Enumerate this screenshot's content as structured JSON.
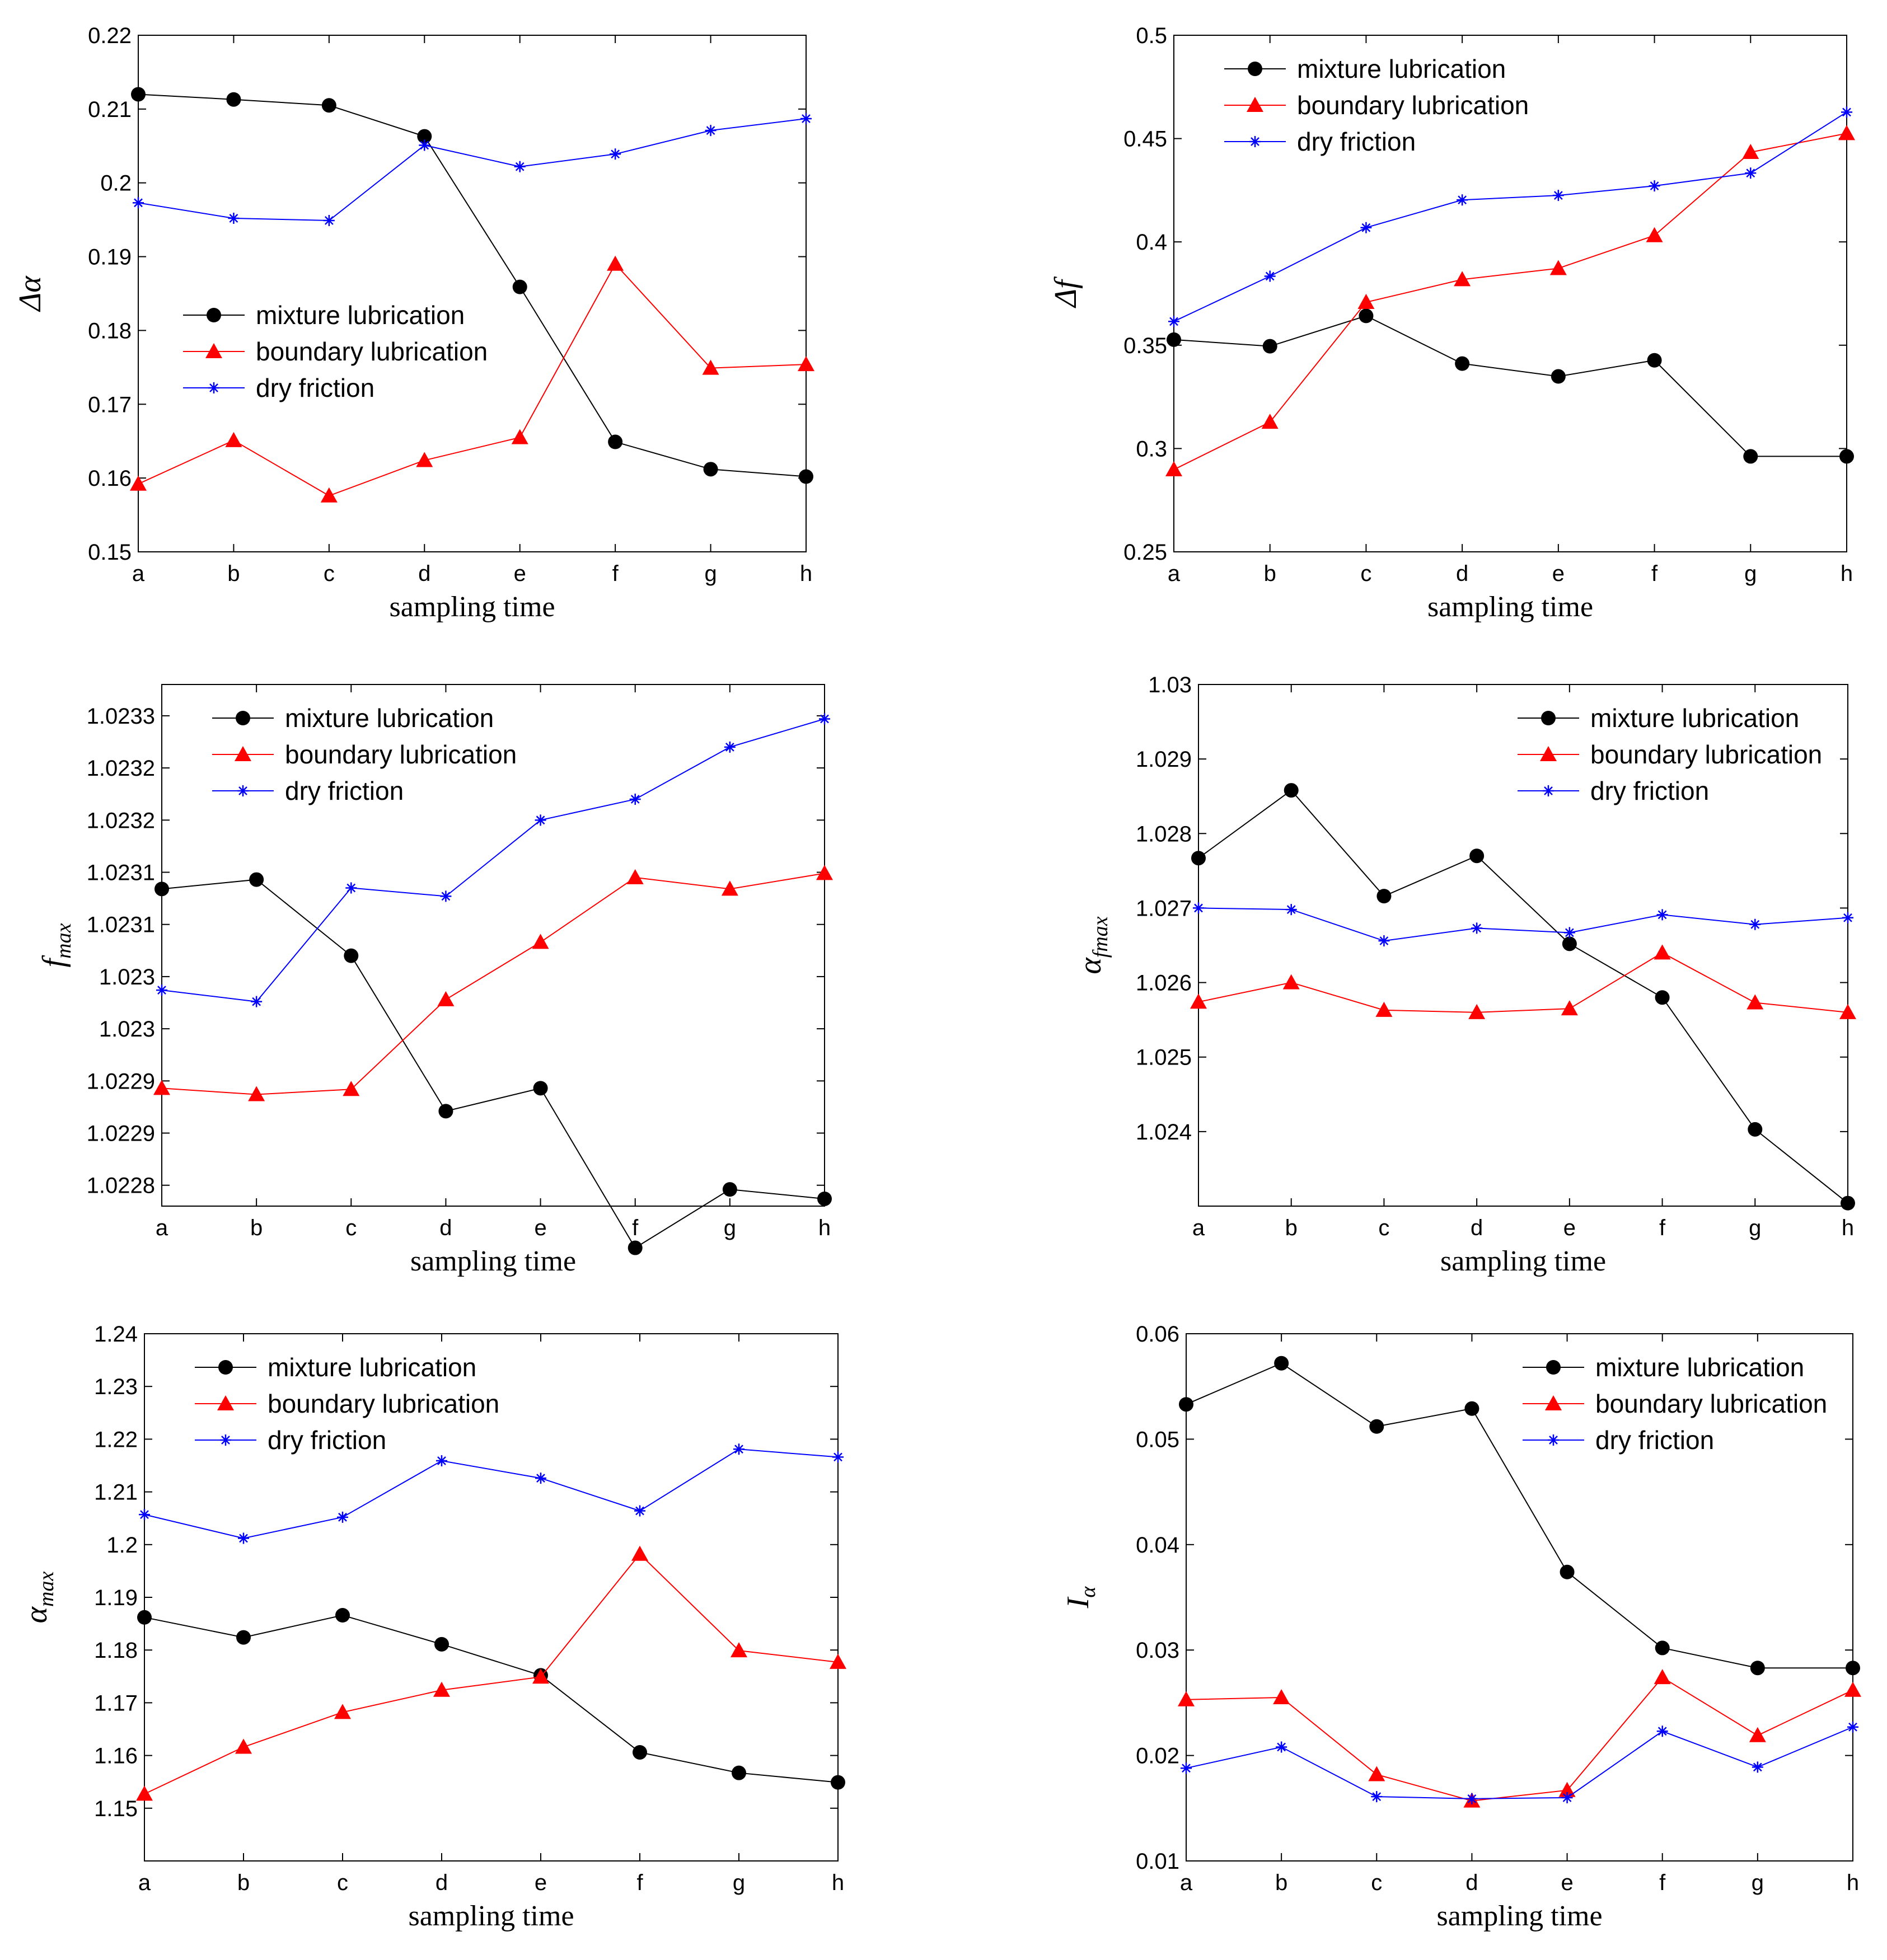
{
  "legend_labels": [
    "mixture lubrication",
    "boundary lubrication",
    "dry friction"
  ],
  "series_styles": [
    {
      "color": "#000000",
      "marker": "circle"
    },
    {
      "color": "#ff0000",
      "marker": "triangle"
    },
    {
      "color": "#0000ff",
      "marker": "asterisk"
    }
  ],
  "chart_data": [
    {
      "type": "line",
      "ylabel": {
        "main": "Δα",
        "sub": ""
      },
      "xlabel": "sampling time",
      "x": [
        "a",
        "b",
        "c",
        "d",
        "e",
        "f",
        "g",
        "h"
      ],
      "ylim": [
        0.15,
        0.22
      ],
      "yticks": [
        0.15,
        0.16,
        0.17,
        0.18,
        0.19,
        0.2,
        0.21,
        0.22
      ],
      "ytick_labels": [
        "0.15",
        "0.16",
        "0.17",
        "0.18",
        "0.19",
        "0.2",
        "0.21",
        "0.22"
      ],
      "legend_position": "middle-left",
      "series": [
        {
          "name": "mixture lubrication",
          "values": [
            0.212,
            0.2113,
            0.2105,
            0.2063,
            0.1859,
            0.1649,
            0.1612,
            0.1602
          ]
        },
        {
          "name": "boundary lubrication",
          "values": [
            0.1592,
            0.1651,
            0.1576,
            0.1624,
            0.1655,
            0.189,
            0.1749,
            0.1754
          ]
        },
        {
          "name": "dry friction",
          "values": [
            0.1973,
            0.1952,
            0.1949,
            0.2051,
            0.2022,
            0.2039,
            0.2071,
            0.2087
          ]
        }
      ]
    },
    {
      "type": "line",
      "ylabel": {
        "main": "Δf",
        "sub": ""
      },
      "xlabel": "sampling time",
      "x": [
        "a",
        "b",
        "c",
        "d",
        "e",
        "f",
        "g",
        "h"
      ],
      "ylim": [
        0.25,
        0.5
      ],
      "yticks": [
        0.25,
        0.3,
        0.35,
        0.4,
        0.45,
        0.5
      ],
      "ytick_labels": [
        "0.25",
        "0.3",
        "0.35",
        "0.4",
        "0.45",
        "0.5"
      ],
      "legend_position": "top-left",
      "series": [
        {
          "name": "mixture lubrication",
          "values": [
            0.3527,
            0.3495,
            0.3642,
            0.3411,
            0.3349,
            0.3427,
            0.2962,
            0.2962
          ]
        },
        {
          "name": "boundary lubrication",
          "values": [
            0.2898,
            0.3128,
            0.3708,
            0.3818,
            0.3872,
            0.4031,
            0.4434,
            0.4525
          ]
        },
        {
          "name": "dry friction",
          "values": [
            0.3615,
            0.3834,
            0.4069,
            0.4203,
            0.4225,
            0.4271,
            0.4333,
            0.4628
          ]
        }
      ]
    },
    {
      "type": "line",
      "ylabel": {
        "main": "f",
        "sub": "max"
      },
      "xlabel": "sampling time",
      "x": [
        "a",
        "b",
        "c",
        "d",
        "e",
        "f",
        "g",
        "h"
      ],
      "ylim": [
        1.02277,
        1.02327
      ],
      "yticks": [
        1.02279,
        1.02284,
        1.02289,
        1.02294,
        1.02299,
        1.02304,
        1.02309,
        1.02314,
        1.02319,
        1.02324
      ],
      "ytick_labels": [
        "1.0228",
        "1.0229",
        "1.0229",
        "1.023",
        "1.023",
        "1.0231",
        "1.0231",
        "1.0232",
        "1.0232",
        "1.0233"
      ],
      "legend_position": "top-left",
      "series": [
        {
          "name": "mixture lubrication",
          "values": [
            1.023074,
            1.023083,
            1.02301,
            1.022861,
            1.022883,
            1.02273,
            1.022786,
            1.022777
          ]
        },
        {
          "name": "boundary lubrication",
          "values": [
            1.022883,
            1.022877,
            1.022882,
            1.022968,
            1.023023,
            1.023085,
            1.023074,
            1.023089
          ]
        },
        {
          "name": "dry friction",
          "values": [
            1.022977,
            1.022966,
            1.023075,
            1.023067,
            1.02314,
            1.02316,
            1.02321,
            1.023237
          ]
        }
      ]
    },
    {
      "type": "line",
      "ylabel": {
        "main": "α",
        "sub": "fmax"
      },
      "xlabel": "sampling time",
      "x": [
        "a",
        "b",
        "c",
        "d",
        "e",
        "f",
        "g",
        "h"
      ],
      "ylim": [
        1.023,
        1.03
      ],
      "yticks": [
        1.024,
        1.025,
        1.026,
        1.027,
        1.028,
        1.029,
        1.03
      ],
      "ytick_labels": [
        "1.024",
        "1.025",
        "1.026",
        "1.027",
        "1.028",
        "1.029",
        "1.03"
      ],
      "legend_position": "top-right",
      "series": [
        {
          "name": "mixture lubrication",
          "values": [
            1.02767,
            1.02858,
            1.02716,
            1.0277,
            1.02652,
            1.0258,
            1.02403,
            1.02304
          ]
        },
        {
          "name": "boundary lubrication",
          "values": [
            1.02574,
            1.026,
            1.02563,
            1.0256,
            1.02565,
            1.0264,
            1.02573,
            1.0256
          ]
        },
        {
          "name": "dry friction",
          "values": [
            1.027,
            1.02698,
            1.02656,
            1.02673,
            1.02667,
            1.02691,
            1.02678,
            1.02687
          ]
        }
      ]
    },
    {
      "type": "line",
      "ylabel": {
        "main": "α",
        "sub": "max"
      },
      "xlabel": "sampling time",
      "x": [
        "a",
        "b",
        "c",
        "d",
        "e",
        "f",
        "g",
        "h"
      ],
      "ylim": [
        1.14,
        1.24
      ],
      "yticks": [
        1.15,
        1.16,
        1.17,
        1.18,
        1.19,
        1.2,
        1.21,
        1.22,
        1.23,
        1.24
      ],
      "ytick_labels": [
        "1.15",
        "1.16",
        "1.17",
        "1.18",
        "1.19",
        "1.2",
        "1.21",
        "1.22",
        "1.23",
        "1.24"
      ],
      "legend_position": "top-left",
      "series": [
        {
          "name": "mixture lubrication",
          "values": [
            1.1862,
            1.1824,
            1.1866,
            1.1811,
            1.1752,
            1.1606,
            1.1567,
            1.1549
          ]
        },
        {
          "name": "boundary lubrication",
          "values": [
            1.1527,
            1.1616,
            1.1682,
            1.1724,
            1.1749,
            1.1982,
            1.1799,
            1.1777
          ]
        },
        {
          "name": "dry friction",
          "values": [
            1.2057,
            1.2012,
            1.2052,
            1.2159,
            1.2126,
            1.2064,
            1.2181,
            1.2166
          ]
        }
      ]
    },
    {
      "type": "line",
      "ylabel": {
        "main": "I",
        "sub": "α"
      },
      "xlabel": "sampling time",
      "x": [
        "a",
        "b",
        "c",
        "d",
        "e",
        "f",
        "g",
        "h"
      ],
      "ylim": [
        0.01,
        0.06
      ],
      "yticks": [
        0.01,
        0.02,
        0.03,
        0.04,
        0.05,
        0.06
      ],
      "ytick_labels": [
        "0.01",
        "0.02",
        "0.03",
        "0.04",
        "0.05",
        "0.06"
      ],
      "legend_position": "top-right",
      "series": [
        {
          "name": "mixture lubrication",
          "values": [
            0.0533,
            0.0572,
            0.0512,
            0.0529,
            0.0374,
            0.0302,
            0.0283,
            0.0283
          ]
        },
        {
          "name": "boundary lubrication",
          "values": [
            0.0253,
            0.0255,
            0.0182,
            0.0157,
            0.0167,
            0.0274,
            0.0219,
            0.0262
          ]
        },
        {
          "name": "dry friction",
          "values": [
            0.0188,
            0.0208,
            0.0161,
            0.0159,
            0.016,
            0.0223,
            0.0189,
            0.0227
          ]
        }
      ]
    }
  ]
}
